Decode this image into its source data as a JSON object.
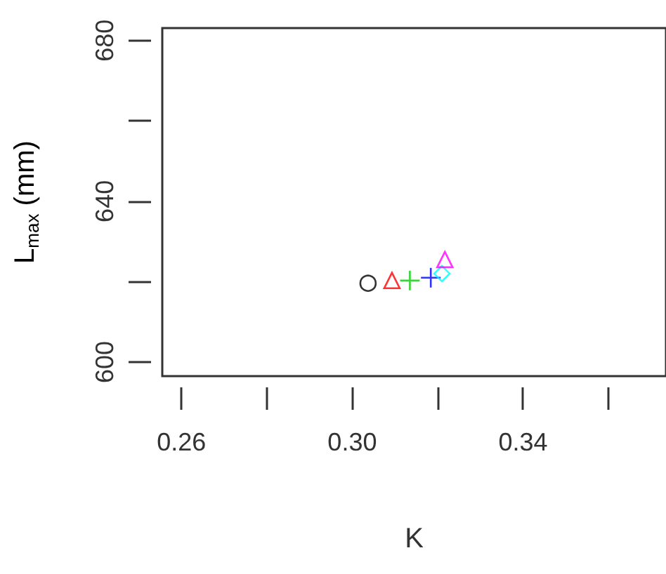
{
  "chart_data": {
    "type": "scatter",
    "xlabel": "K",
    "ylabel": "L$_{max}$ (mm)",
    "xlim": [
      0.2555,
      0.3735
    ],
    "xticks": [
      0.26,
      {
        "value": 0.28,
        "label": null
      },
      {
        "value": 0.3,
        "label": "0.30"
      },
      {
        "value": 0.32,
        "label": null
      },
      0.34,
      {
        "value": 0.36,
        "label": null
      }
    ],
    "ylim": [
      596.5,
      683.1
    ],
    "yticks": [
      600,
      {
        "value": 620,
        "label": null
      },
      640,
      {
        "value": 660,
        "label": null
      },
      680
    ],
    "grid": false,
    "series": [
      {
        "color": "#000000",
        "marker": "circle",
        "x": [
          0.3037
        ],
        "values": [
          619.6
        ]
      },
      {
        "color": "#ff0000",
        "marker": "triangle",
        "x": [
          0.3093
        ],
        "values": [
          620.3
        ]
      },
      {
        "color": "#00cd00",
        "marker": "cross",
        "x": [
          0.3135
        ],
        "values": [
          620.3
        ]
      },
      {
        "color": "#0000ff",
        "marker": "cross",
        "x": [
          0.3184
        ],
        "values": [
          621.0
        ]
      },
      {
        "color": "#00ffff",
        "marker": "diamond",
        "x": [
          0.321
        ],
        "values": [
          622.0
        ]
      },
      {
        "color": "#ff00ff",
        "marker": "triangle",
        "x": [
          0.3217
        ],
        "values": [
          625.5
        ]
      }
    ]
  }
}
